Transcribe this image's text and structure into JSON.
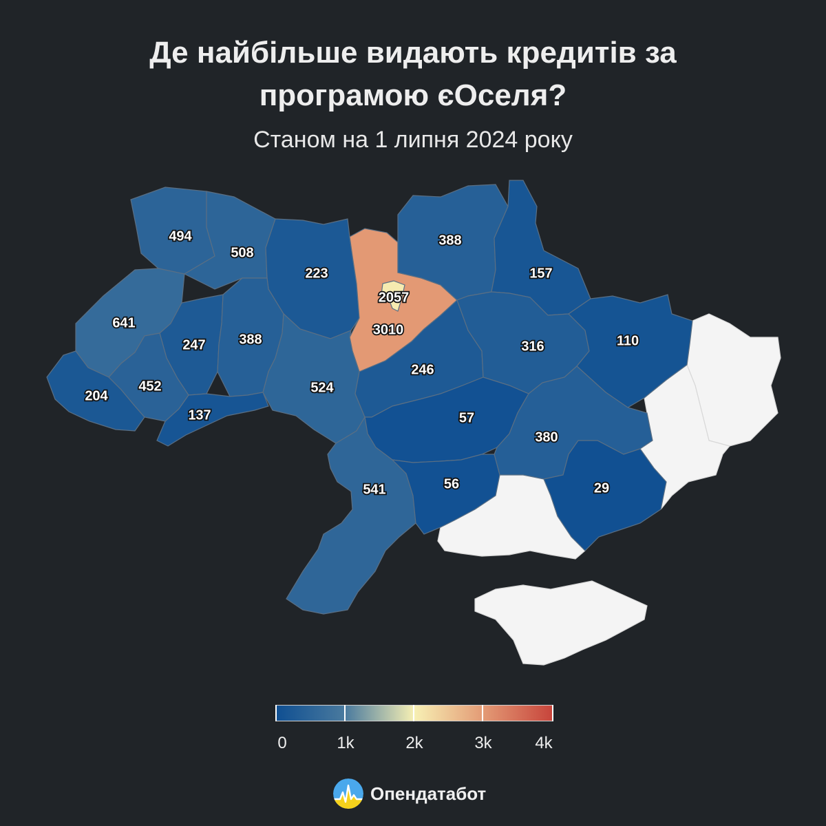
{
  "header": {
    "title_line1": "Де найбільше видають кредитів за",
    "title_line2": "програмою єОселя?",
    "subtitle": "Станом на 1 липня 2024 року"
  },
  "map_data": {
    "type": "choropleth",
    "regions": [
      {
        "id": "volyn",
        "value": 494
      },
      {
        "id": "rivne",
        "value": 508
      },
      {
        "id": "zhytomyr",
        "value": 223
      },
      {
        "id": "kyiv-oblast",
        "value": 3010
      },
      {
        "id": "kyiv-city",
        "value": 2057
      },
      {
        "id": "chernihiv",
        "value": 388
      },
      {
        "id": "sumy",
        "value": 157
      },
      {
        "id": "lviv",
        "value": 641
      },
      {
        "id": "ternopil",
        "value": 247
      },
      {
        "id": "khmelnytskyi",
        "value": 388
      },
      {
        "id": "vinnytsia",
        "value": 524
      },
      {
        "id": "cherkasy",
        "value": 246
      },
      {
        "id": "poltava",
        "value": 316
      },
      {
        "id": "kharkiv",
        "value": 110
      },
      {
        "id": "zakarpattia",
        "value": 204
      },
      {
        "id": "ivano-frankivsk",
        "value": 452
      },
      {
        "id": "chernivtsi",
        "value": 137
      },
      {
        "id": "kirovohrad",
        "value": 57
      },
      {
        "id": "dnipropetrovsk",
        "value": 380
      },
      {
        "id": "odesa",
        "value": 541
      },
      {
        "id": "mykolaiv",
        "value": 56
      },
      {
        "id": "zaporizhzhia",
        "value": 29
      }
    ],
    "occupied_regions": [
      "luhansk",
      "donetsk",
      "kherson-south",
      "crimea"
    ],
    "color_scale": {
      "min": 0,
      "max": 4000,
      "stops": [
        "#0f4f92",
        "#4a7a9e",
        "#f7f0b4",
        "#e39a75",
        "#c7443b"
      ]
    }
  },
  "legend": {
    "labels": [
      "0",
      "1k",
      "2k",
      "3k",
      "4k"
    ]
  },
  "brand": {
    "name": "Опендатабот"
  }
}
